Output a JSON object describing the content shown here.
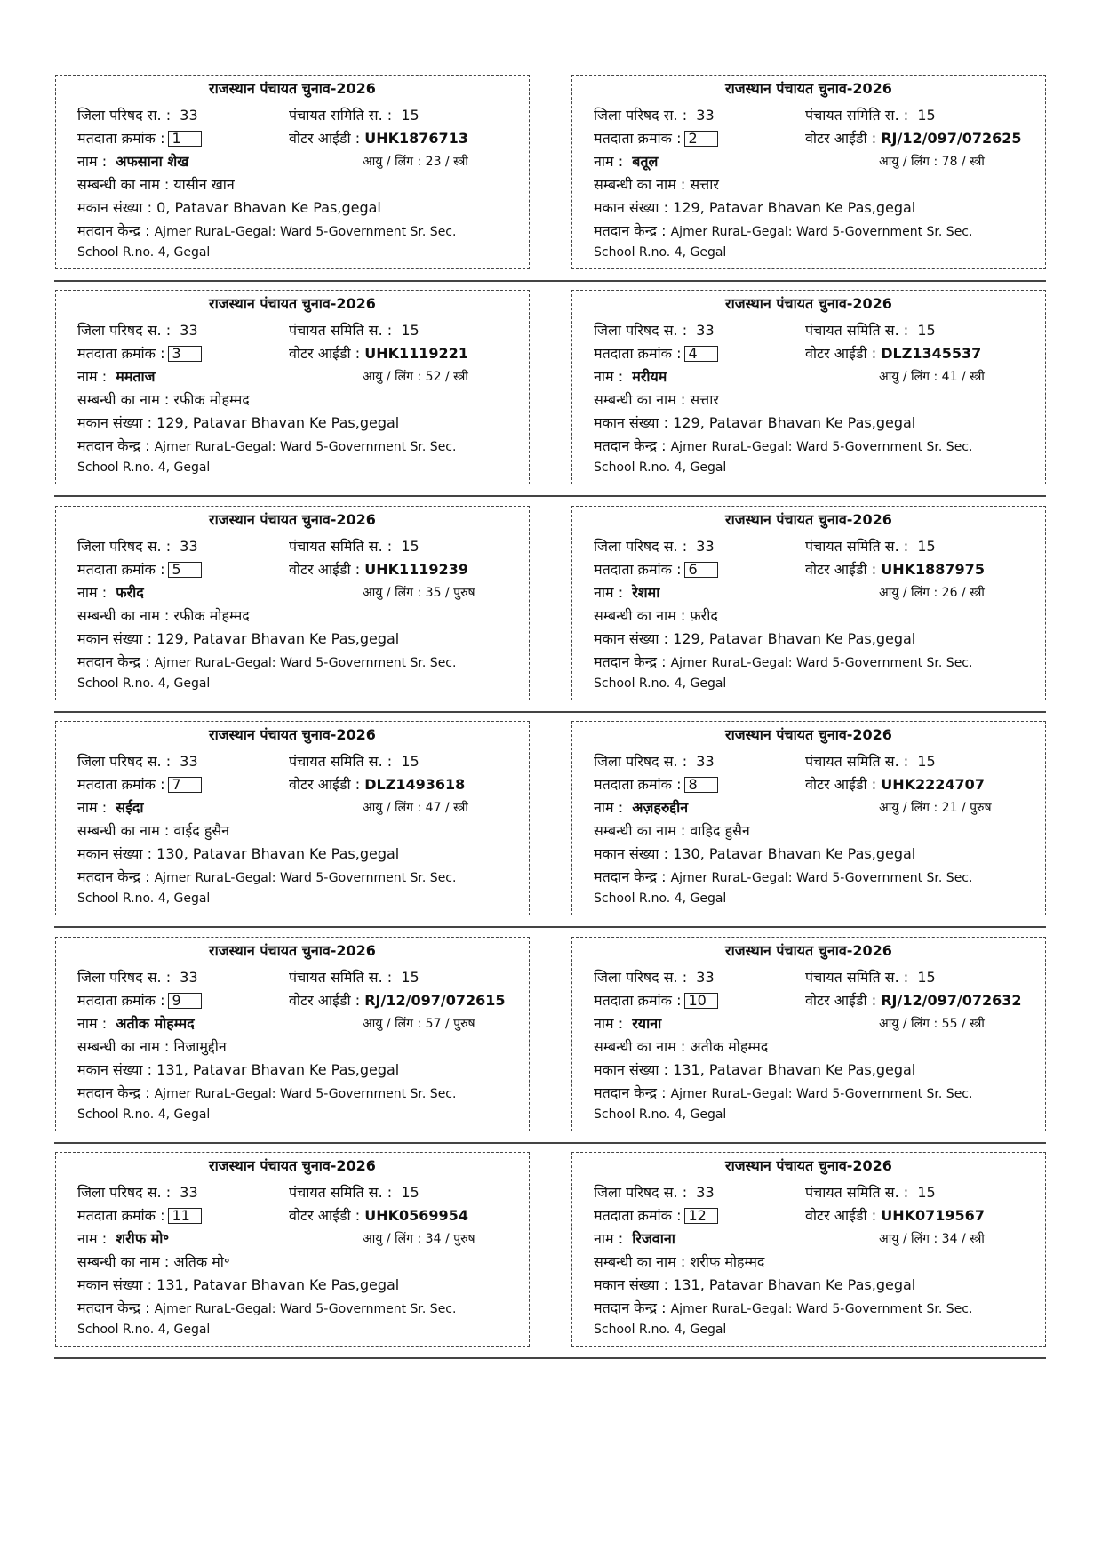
{
  "labels": {
    "title": "राजस्थान पंचायत चुनाव-2026",
    "zila": "जिला परिषद स.",
    "samiti": "पंचायत समिति स.",
    "serial": "मतदाता क्रमांक",
    "voter_id": "वोटर आईडी",
    "name": "नाम",
    "age_gender": "आयु / लिंग",
    "relative": "सम्बन्धी का नाम",
    "house": "मकान संख्या",
    "booth": "मतदान केन्द्र",
    "colon": ":"
  },
  "cards": [
    {
      "zila": "33",
      "samiti": "15",
      "serial": "1",
      "voter_id": "UHK1876713",
      "name": "अफसाना शेख",
      "age": "23",
      "gender": "स्त्री",
      "relative": "यासीन खान",
      "house": "0, Patavar Bhavan Ke Pas,gegal",
      "booth_1": "Ajmer RuraL-Gegal: Ward 5-Government Sr. Sec.",
      "booth_2": "School R.no. 4, Gegal"
    },
    {
      "zila": "33",
      "samiti": "15",
      "serial": "2",
      "voter_id": "RJ/12/097/072625",
      "name": "बतूल",
      "age": "78",
      "gender": "स्त्री",
      "relative": "सत्तार",
      "house": "129, Patavar Bhavan Ke Pas,gegal",
      "booth_1": "Ajmer RuraL-Gegal: Ward 5-Government Sr. Sec.",
      "booth_2": "School R.no. 4, Gegal"
    },
    {
      "zila": "33",
      "samiti": "15",
      "serial": "3",
      "voter_id": "UHK1119221",
      "name": "ममताज",
      "age": "52",
      "gender": "स्त्री",
      "relative": "रफीक मोहम्मद",
      "house": "129, Patavar Bhavan Ke Pas,gegal",
      "booth_1": "Ajmer RuraL-Gegal: Ward 5-Government Sr. Sec.",
      "booth_2": "School R.no. 4, Gegal"
    },
    {
      "zila": "33",
      "samiti": "15",
      "serial": "4",
      "voter_id": "DLZ1345537",
      "name": "मरीयम",
      "age": "41",
      "gender": "स्त्री",
      "relative": "सत्तार",
      "house": "129, Patavar Bhavan Ke Pas,gegal",
      "booth_1": "Ajmer RuraL-Gegal: Ward 5-Government Sr. Sec.",
      "booth_2": "School R.no. 4, Gegal"
    },
    {
      "zila": "33",
      "samiti": "15",
      "serial": "5",
      "voter_id": "UHK1119239",
      "name": "फरीद",
      "age": "35",
      "gender": "पुरुष",
      "relative": "रफीक मोहम्मद",
      "house": "129, Patavar Bhavan Ke Pas,gegal",
      "booth_1": "Ajmer RuraL-Gegal: Ward 5-Government Sr. Sec.",
      "booth_2": "School R.no. 4, Gegal"
    },
    {
      "zila": "33",
      "samiti": "15",
      "serial": "6",
      "voter_id": "UHK1887975",
      "name": "रेशमा",
      "age": "26",
      "gender": "स्त्री",
      "relative": "फ़रीद",
      "house": "129, Patavar Bhavan Ke Pas,gegal",
      "booth_1": "Ajmer RuraL-Gegal: Ward 5-Government Sr. Sec.",
      "booth_2": "School R.no. 4, Gegal"
    },
    {
      "zila": "33",
      "samiti": "15",
      "serial": "7",
      "voter_id": "DLZ1493618",
      "name": "सईदा",
      "age": "47",
      "gender": "स्त्री",
      "relative": "वाईद हुसैन",
      "house": "130, Patavar Bhavan Ke Pas,gegal",
      "booth_1": "Ajmer RuraL-Gegal: Ward 5-Government Sr. Sec.",
      "booth_2": "School R.no. 4, Gegal"
    },
    {
      "zila": "33",
      "samiti": "15",
      "serial": "8",
      "voter_id": "UHK2224707",
      "name": "अज़हरुद्दीन",
      "age": "21",
      "gender": "पुरुष",
      "relative": "वाहिद हुसैन",
      "house": "130, Patavar Bhavan Ke Pas,gegal",
      "booth_1": "Ajmer RuraL-Gegal: Ward 5-Government Sr. Sec.",
      "booth_2": "School R.no. 4, Gegal"
    },
    {
      "zila": "33",
      "samiti": "15",
      "serial": "9",
      "voter_id": "RJ/12/097/072615",
      "name": "अतीक मोहम्मद",
      "age": "57",
      "gender": "पुरुष",
      "relative": "निजामुद्दीन",
      "house": "131, Patavar Bhavan Ke Pas,gegal",
      "booth_1": "Ajmer RuraL-Gegal: Ward 5-Government Sr. Sec.",
      "booth_2": "School R.no. 4, Gegal"
    },
    {
      "zila": "33",
      "samiti": "15",
      "serial": "10",
      "voter_id": "RJ/12/097/072632",
      "name": "रयाना",
      "age": "55",
      "gender": "स्त्री",
      "relative": "अतीक मोहम्मद",
      "house": "131, Patavar Bhavan Ke Pas,gegal",
      "booth_1": "Ajmer RuraL-Gegal: Ward 5-Government Sr. Sec.",
      "booth_2": "School R.no. 4, Gegal"
    },
    {
      "zila": "33",
      "samiti": "15",
      "serial": "11",
      "voter_id": "UHK0569954",
      "name": "शरीफ मो॰",
      "age": "34",
      "gender": "पुरुष",
      "relative": "अतिक मो॰",
      "house": "131, Patavar Bhavan Ke Pas,gegal",
      "booth_1": "Ajmer RuraL-Gegal: Ward 5-Government Sr. Sec.",
      "booth_2": "School R.no. 4, Gegal"
    },
    {
      "zila": "33",
      "samiti": "15",
      "serial": "12",
      "voter_id": "UHK0719567",
      "name": "रिजवाना",
      "age": "34",
      "gender": "स्त्री",
      "relative": "शरीफ मोहम्मद",
      "house": "131, Patavar Bhavan Ke Pas,gegal",
      "booth_1": "Ajmer RuraL-Gegal: Ward 5-Government Sr. Sec.",
      "booth_2": "School R.no. 4, Gegal"
    }
  ]
}
